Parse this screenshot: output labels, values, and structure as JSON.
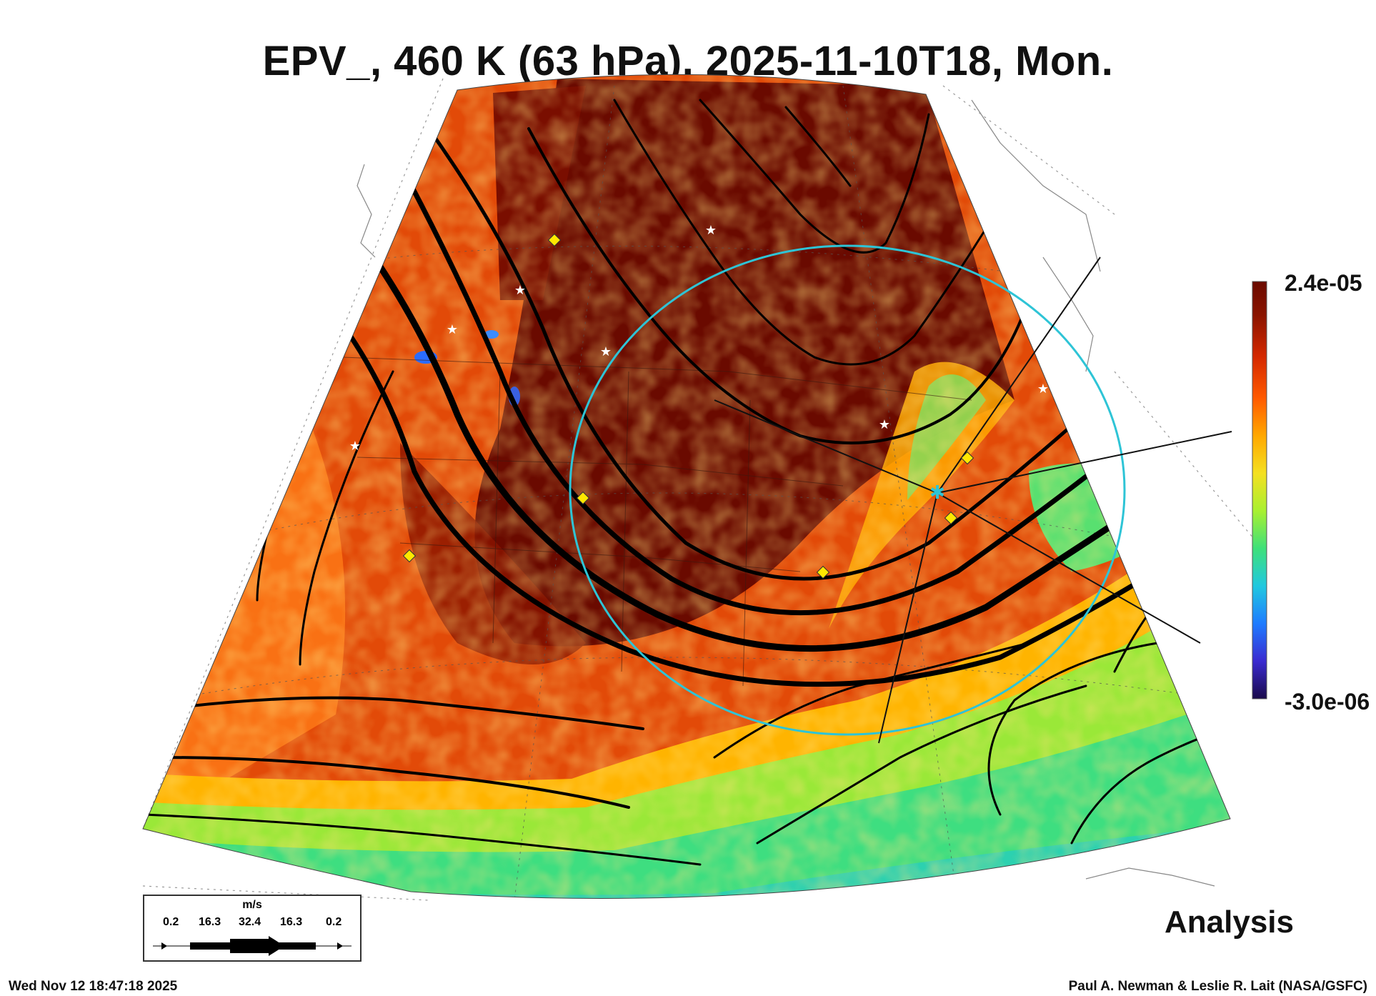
{
  "title": "EPV_, 460 K (63 hPa), 2025-11-10T18, Mon.",
  "colorbar": {
    "max_label": "2.4e-05",
    "min_label": "-3.0e-06",
    "stops": [
      "#1a0a4a",
      "#3a2ad0",
      "#1e7bff",
      "#20c8e0",
      "#3ee07a",
      "#a8f030",
      "#f4e020",
      "#ffa800",
      "#ff5a00",
      "#d42800",
      "#8a1400",
      "#6a0a00"
    ]
  },
  "wind_legend": {
    "unit": "m/s",
    "values": [
      "0.2",
      "16.3",
      "32.4",
      "16.3",
      "0.2"
    ]
  },
  "label": "Analysis",
  "footer": {
    "timestamp": "Wed Nov 12 18:47:18 2025",
    "credit": "Paul A. Newman & Leslie R. Lait (NASA/GSFC)"
  },
  "colors": {
    "vortex_edge": "#2ec4d6",
    "station_marker": "#ffe800",
    "dark_pv": "#6a0a00",
    "mid_pv": "#d83000",
    "low_pv": "#4fe070"
  }
}
